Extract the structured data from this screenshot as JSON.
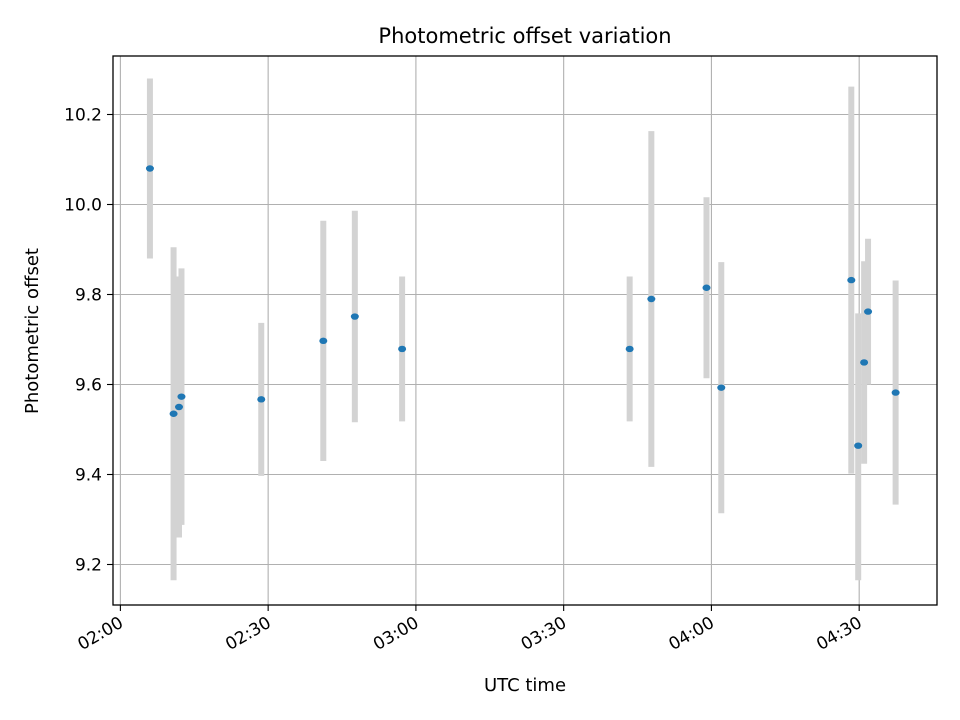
{
  "chart_data": {
    "type": "scatter",
    "title": "Photometric offset variation",
    "xlabel": "UTC time",
    "ylabel": "Photometric offset",
    "x_ticks": [
      "02:00",
      "02:30",
      "03:00",
      "03:30",
      "04:00",
      "04:30"
    ],
    "y_ticks": [
      "9.2",
      "9.4",
      "9.6",
      "9.8",
      "10.0",
      "10.2"
    ],
    "xlim": [
      "01:58.5",
      "04:45.8"
    ],
    "ylim": [
      9.11,
      10.33
    ],
    "grid": true,
    "point_color": "#1f77b4",
    "errorbar_color": "#d3d3d3",
    "points": [
      {
        "x": "02:06",
        "y": 10.08,
        "yerr_low": 9.88,
        "yerr_high": 10.28
      },
      {
        "x": "02:10.8",
        "y": 9.535,
        "yerr_low": 9.165,
        "yerr_high": 9.905
      },
      {
        "x": "02:11.9",
        "y": 9.55,
        "yerr_low": 9.26,
        "yerr_high": 9.84
      },
      {
        "x": "02:12.4",
        "y": 9.573,
        "yerr_low": 9.288,
        "yerr_high": 9.858
      },
      {
        "x": "02:28.6",
        "y": 9.567,
        "yerr_low": 9.397,
        "yerr_high": 9.737
      },
      {
        "x": "02:41.2",
        "y": 9.697,
        "yerr_low": 9.43,
        "yerr_high": 9.964
      },
      {
        "x": "02:47.6",
        "y": 9.751,
        "yerr_low": 9.516,
        "yerr_high": 9.986
      },
      {
        "x": "02:57.2",
        "y": 9.679,
        "yerr_low": 9.518,
        "yerr_high": 9.84
      },
      {
        "x": "03:43.4",
        "y": 9.679,
        "yerr_low": 9.518,
        "yerr_high": 9.84
      },
      {
        "x": "03:47.8",
        "y": 9.79,
        "yerr_low": 9.417,
        "yerr_high": 10.163
      },
      {
        "x": "03:59",
        "y": 9.815,
        "yerr_low": 9.614,
        "yerr_high": 10.016
      },
      {
        "x": "04:02",
        "y": 9.593,
        "yerr_low": 9.314,
        "yerr_high": 9.872
      },
      {
        "x": "04:28.4",
        "y": 9.832,
        "yerr_low": 9.402,
        "yerr_high": 10.262
      },
      {
        "x": "04:29.8",
        "y": 9.464,
        "yerr_low": 9.165,
        "yerr_high": 9.758
      },
      {
        "x": "04:31",
        "y": 9.649,
        "yerr_low": 9.424,
        "yerr_high": 9.874
      },
      {
        "x": "04:31.8",
        "y": 9.762,
        "yerr_low": 9.6,
        "yerr_high": 9.924
      },
      {
        "x": "04:37.4",
        "y": 9.582,
        "yerr_low": 9.333,
        "yerr_high": 9.831
      }
    ]
  }
}
